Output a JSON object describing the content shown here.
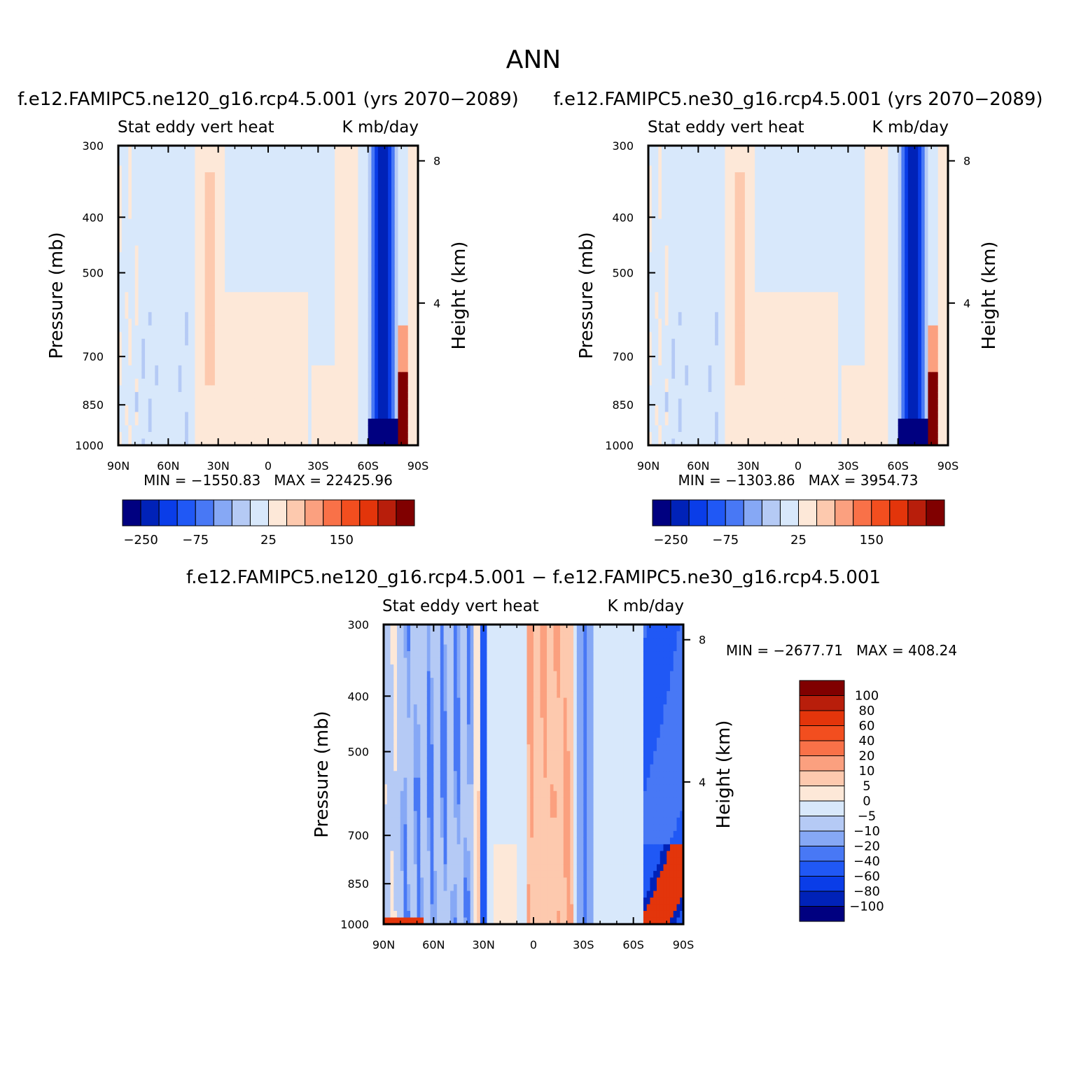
{
  "figure_title": "ANN",
  "colors": {
    "palette13": [
      "#000080",
      "#0022b8",
      "#0a3de8",
      "#2058f5",
      "#4878f5",
      "#86a8f5",
      "#b5caf5",
      "#d8e8fb",
      "#fde8d8",
      "#fdc9ae",
      "#fba07f",
      "#f97148",
      "#f24e1f",
      "#e3350b",
      "#b81e0b",
      "#800000"
    ],
    "diff_palette": [
      "#000080",
      "#0022b8",
      "#0a3de8",
      "#2058f5",
      "#4878f5",
      "#86a8f5",
      "#b5caf5",
      "#d8e8fb",
      "#fde8d8",
      "#fdc9ae",
      "#fba07f",
      "#f97148",
      "#f24e1f",
      "#e3350b",
      "#b81e0b",
      "#800000"
    ]
  },
  "chart_data": [
    {
      "id": "panel-ne120",
      "type": "heatmap",
      "title": "f.e12.FAMIPC5.ne120_g16.rcp4.5.001 (yrs 2070−2089)",
      "left_subtitle": "Stat eddy vert heat",
      "right_subtitle": "K mb/day",
      "xlabel": "",
      "ylabel": "Pressure (mb)",
      "y2label": "Height (km)",
      "x_ticks": [
        "90N",
        "60N",
        "30N",
        "0",
        "30S",
        "60S",
        "90S"
      ],
      "y_ticks": [
        300,
        400,
        500,
        700,
        850,
        1000
      ],
      "y2_ticks": [
        8,
        4
      ],
      "xlim": [
        90,
        -90
      ],
      "ylim": [
        300,
        1000
      ],
      "stats": "MIN = −1550.83   MAX = 22425.96",
      "colorbar_labels": [
        "−250",
        "−75",
        "25",
        "150"
      ]
    },
    {
      "id": "panel-ne30",
      "type": "heatmap",
      "title": "f.e12.FAMIPC5.ne30_g16.rcp4.5.001 (yrs 2070−2089)",
      "left_subtitle": "Stat eddy vert heat",
      "right_subtitle": "K mb/day",
      "xlabel": "",
      "ylabel": "Pressure (mb)",
      "y2label": "Height (km)",
      "x_ticks": [
        "90N",
        "60N",
        "30N",
        "0",
        "30S",
        "60S",
        "90S"
      ],
      "y_ticks": [
        300,
        400,
        500,
        700,
        850,
        1000
      ],
      "y2_ticks": [
        8,
        4
      ],
      "xlim": [
        90,
        -90
      ],
      "ylim": [
        300,
        1000
      ],
      "stats": "MIN = −1303.86   MAX = 3954.73",
      "colorbar_labels": [
        "−250",
        "−75",
        "25",
        "150"
      ]
    },
    {
      "id": "panel-diff",
      "type": "heatmap",
      "title": "f.e12.FAMIPC5.ne120_g16.rcp4.5.001 − f.e12.FAMIPC5.ne30_g16.rcp4.5.001",
      "left_subtitle": "Stat eddy vert heat",
      "right_subtitle": "K mb/day",
      "xlabel": "",
      "ylabel": "Pressure (mb)",
      "y2label": "Height (km)",
      "x_ticks": [
        "90N",
        "60N",
        "30N",
        "0",
        "30S",
        "60S",
        "90S"
      ],
      "y_ticks": [
        300,
        400,
        500,
        700,
        850,
        1000
      ],
      "y2_ticks": [
        8,
        4
      ],
      "xlim": [
        90,
        -90
      ],
      "ylim": [
        300,
        1000
      ],
      "stats": "MIN = −2677.71   MAX = 408.24",
      "colorbar_labels": [
        "100",
        "80",
        "60",
        "40",
        "20",
        "10",
        "5",
        "0",
        "−5",
        "−10",
        "−20",
        "−40",
        "−60",
        "−80",
        "−100"
      ]
    }
  ]
}
